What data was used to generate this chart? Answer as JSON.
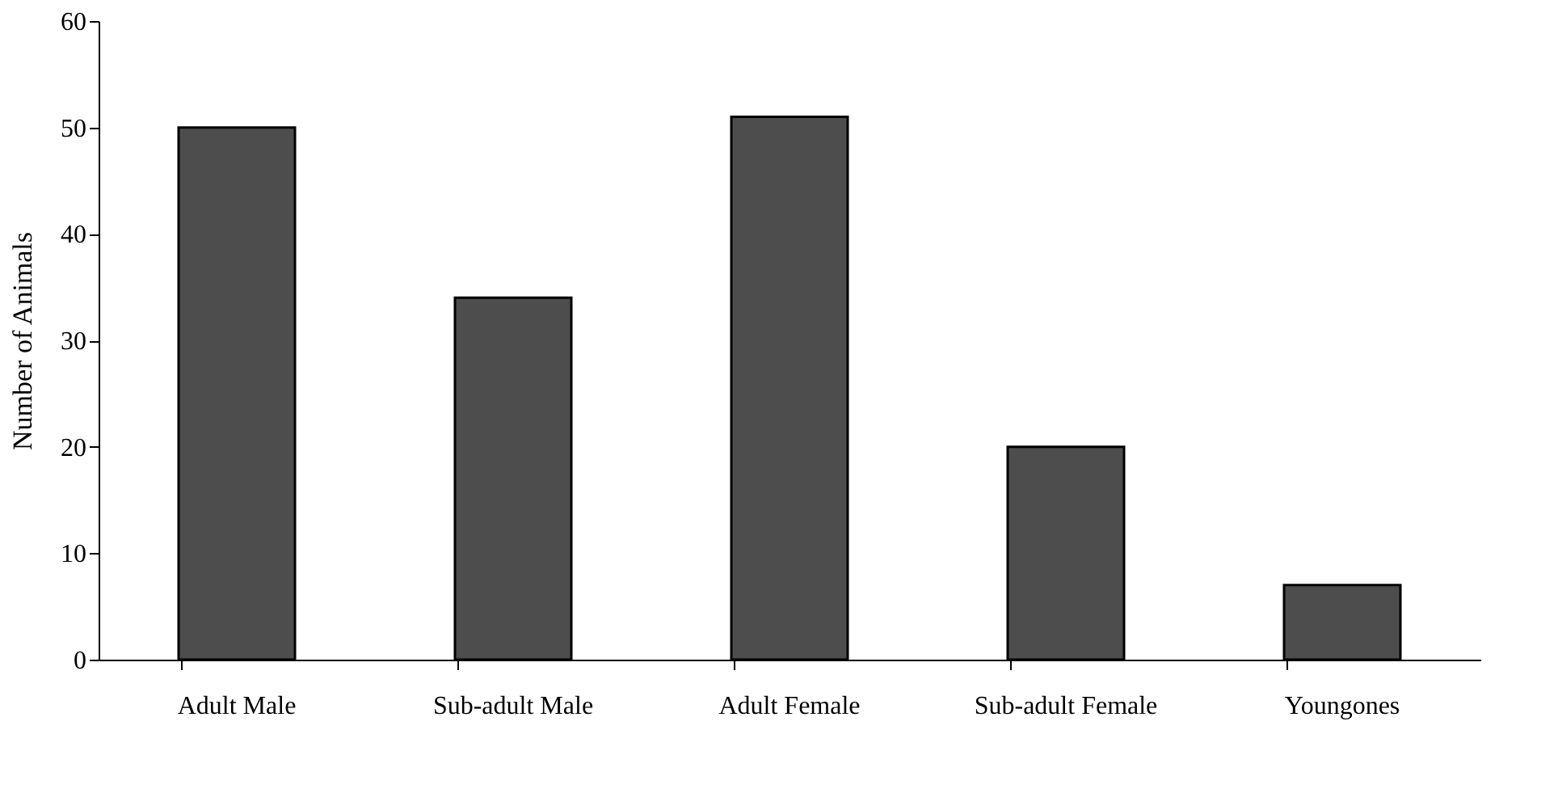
{
  "chart_data": {
    "type": "bar",
    "ylabel": "Number of Animals",
    "categories": [
      "Adult Male",
      "Sub-adult Male",
      "Adult Female",
      "Sub-adult Female",
      "Youngones"
    ],
    "values": [
      50,
      34,
      51,
      20,
      7
    ],
    "color": "#4d4d4d",
    "ylim": [
      0,
      60
    ],
    "yticks": [
      0,
      10,
      20,
      30,
      40,
      50,
      60
    ],
    "grid": false
  }
}
